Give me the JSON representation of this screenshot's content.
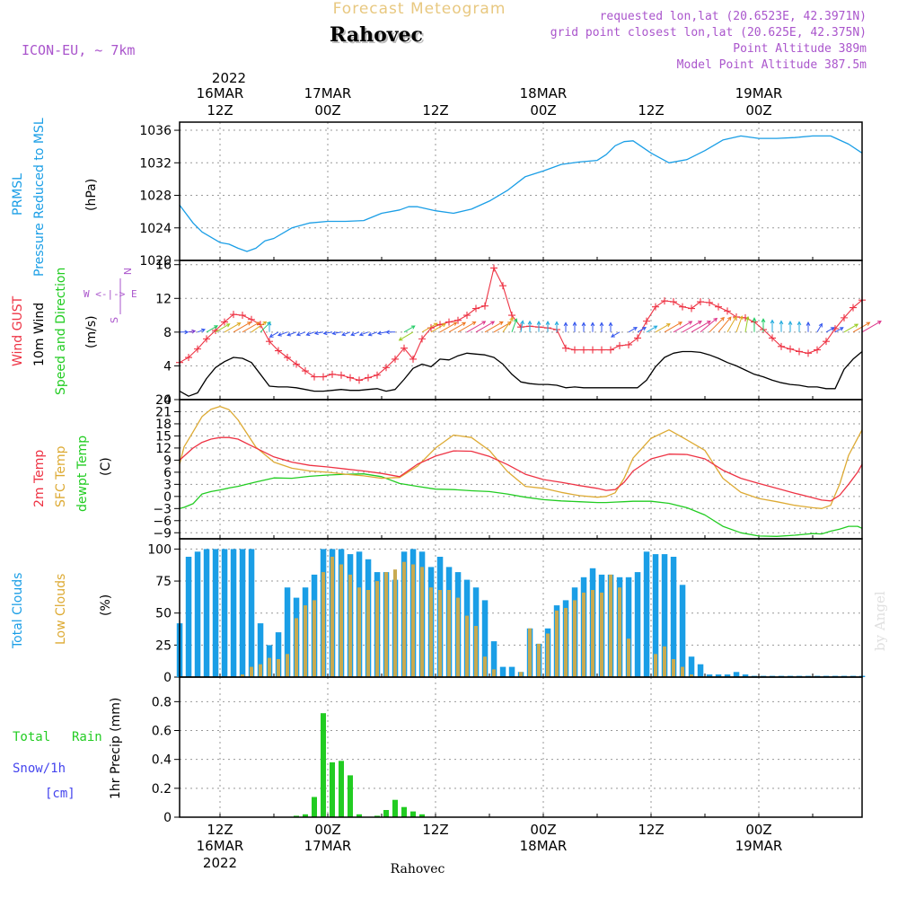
{
  "header": {
    "product_title": "Forecast Meteogram",
    "location": "Rahovec",
    "model": "ICON-EU, ~ 7km",
    "requested_coords": "requested lon,lat (20.6523E, 42.3971N)",
    "grid_coords": "grid point closest lon,lat (20.625E, 42.375N)",
    "point_altitude": "Point Altitude 389m",
    "model_altitude": "Model Point Altitude 387.5m",
    "footer_location": "Rahovec",
    "watermark": "by Angel"
  },
  "time_axis": {
    "top_year": "2022",
    "top_labels": [
      {
        "h": 12,
        "l1": "16MAR",
        "l2": "12Z"
      },
      {
        "h": 24,
        "l1": "17MAR",
        "l2": "00Z"
      },
      {
        "h": 36,
        "l1": "",
        "l2": "12Z"
      },
      {
        "h": 48,
        "l1": "18MAR",
        "l2": "00Z"
      },
      {
        "h": 60,
        "l1": "",
        "l2": "12Z"
      },
      {
        "h": 72,
        "l1": "19MAR",
        "l2": "00Z"
      }
    ],
    "bottom_labels": [
      {
        "h": 12,
        "l1": "12Z",
        "l2": "16MAR",
        "l3": "2022"
      },
      {
        "h": 24,
        "l1": "00Z",
        "l2": "17MAR",
        "l3": ""
      },
      {
        "h": 36,
        "l1": "12Z",
        "l2": "",
        "l3": ""
      },
      {
        "h": 48,
        "l1": "00Z",
        "l2": "18MAR",
        "l3": ""
      },
      {
        "h": 60,
        "l1": "12Z",
        "l2": "",
        "l3": ""
      },
      {
        "h": 72,
        "l1": "00Z",
        "l2": "19MAR",
        "l3": ""
      }
    ],
    "start_hour_offset": 7.5,
    "end_hour_offset": 83.5
  },
  "panel_labels": {
    "pressure": [
      "PRMSL",
      "Pressure Reduced to MSL",
      "(hPa)"
    ],
    "wind": [
      "Wind GUST",
      "10m Wind",
      "Speed and Direction",
      "(m/s)"
    ],
    "compass": [
      "N",
      "W <-|-> E",
      "S"
    ],
    "temp": [
      "2m Temp",
      "SFC Temp",
      "dewpt Temp",
      "(C)"
    ],
    "clouds": [
      "Total Clouds",
      "Low Clouds",
      "(%)"
    ],
    "precip": [
      "Total",
      "Rain",
      "Snow/1h",
      "[cm]",
      "1hr Precip (mm)"
    ]
  },
  "colors": {
    "pressure": "#1a9ee6",
    "gust": "#ee3344",
    "wind": "#000000",
    "sfc_temp": "#ddaa33",
    "dewpt": "#22cc22",
    "total_clouds": "#1a9ee6",
    "low_clouds": "#c8aa50",
    "rain": "#22cc22",
    "snow": "#4444ee",
    "title_gold": "#e8c880",
    "magenta": "#aa55cc"
  },
  "chart_data": [
    {
      "type": "line",
      "title": "Pressure Reduced to MSL",
      "ylabel": "(hPa)",
      "ylim": [
        1020,
        1037
      ],
      "yticks": [
        1020,
        1024,
        1028,
        1032,
        1036
      ],
      "x_hours": [
        7.5,
        9,
        10,
        12,
        13,
        14,
        15,
        16,
        17,
        18,
        20,
        22,
        24,
        26,
        28,
        30,
        32,
        33,
        34,
        36,
        38,
        40,
        41,
        42,
        44,
        46,
        48,
        50,
        52,
        54,
        55,
        56,
        57,
        58,
        60,
        62,
        64,
        66,
        68,
        70,
        72,
        74,
        76,
        78,
        80,
        82,
        83.5
      ],
      "series": [
        {
          "name": "PRMSL",
          "values": [
            1026.8,
            1024.6,
            1023.5,
            1022.2,
            1022.0,
            1021.5,
            1021.1,
            1021.5,
            1022.4,
            1022.7,
            1024.0,
            1024.6,
            1024.8,
            1024.8,
            1024.9,
            1025.8,
            1026.2,
            1026.6,
            1026.6,
            1026.1,
            1025.8,
            1026.3,
            1026.8,
            1027.3,
            1028.6,
            1030.3,
            1031.0,
            1031.8,
            1032.1,
            1032.3,
            1033.0,
            1034.1,
            1034.6,
            1034.7,
            1033.2,
            1032.0,
            1032.4,
            1033.5,
            1034.8,
            1035.3,
            1035.0,
            1035.0,
            1035.1,
            1035.3,
            1035.3,
            1034.3,
            1033.2
          ]
        }
      ]
    },
    {
      "type": "line",
      "title": "Wind GUST / 10m Wind Speed and Direction",
      "ylabel": "(m/s)",
      "ylim": [
        0,
        16.5
      ],
      "yticks": [
        0,
        4,
        8,
        12,
        16
      ],
      "x_hours": [
        7.5,
        8.5,
        9.5,
        10.5,
        11.5,
        12.5,
        13.5,
        14.5,
        15.5,
        16.5,
        17.5,
        18.5,
        19.5,
        20.5,
        21.5,
        22.5,
        23.5,
        24.5,
        25.5,
        26.5,
        27.5,
        28.5,
        29.5,
        30.5,
        31.5,
        32.5,
        33.5,
        34.5,
        35.5,
        36.5,
        37.5,
        38.5,
        39.5,
        40.5,
        41.5,
        42.5,
        43.5,
        44.5,
        45.5,
        46.5,
        47.5,
        48.5,
        49.5,
        50.5,
        51.5,
        52.5,
        53.5,
        54.5,
        55.5,
        56.5,
        57.5,
        58.5,
        59.5,
        60.5,
        61.5,
        62.5,
        63.5,
        64.5,
        65.5,
        66.5,
        67.5,
        68.5,
        69.5,
        70.5,
        71.5,
        72.5,
        73.5,
        74.5,
        75.5,
        76.5,
        77.5,
        78.5,
        79.5,
        80.5,
        81.5,
        82.5,
        83.5
      ],
      "series": [
        {
          "name": "Wind GUST",
          "values": [
            4.4,
            5.0,
            6.0,
            7.2,
            8.2,
            9.2,
            10.1,
            10.0,
            9.5,
            8.9,
            6.9,
            5.8,
            5.0,
            4.2,
            3.4,
            2.7,
            2.7,
            3.0,
            2.9,
            2.6,
            2.3,
            2.6,
            2.9,
            3.8,
            4.8,
            6.1,
            4.8,
            7.2,
            8.5,
            8.9,
            9.2,
            9.4,
            10.0,
            10.8,
            11.1,
            15.6,
            13.5,
            10.0,
            8.6,
            8.7,
            8.6,
            8.5,
            8.3,
            6.1,
            5.9,
            5.9,
            5.9,
            5.9,
            5.9,
            6.4,
            6.5,
            7.3,
            9.3,
            11.0,
            11.7,
            11.6,
            11.0,
            10.8,
            11.6,
            11.5,
            11.0,
            10.5,
            9.8,
            9.7,
            9.2,
            8.3,
            7.3,
            6.3,
            6.0,
            5.7,
            5.5,
            5.9,
            6.9,
            8.4,
            9.7,
            10.9,
            11.8
          ]
        },
        {
          "name": "10m Wind",
          "values": [
            1.0,
            0.4,
            0.8,
            2.5,
            3.8,
            4.5,
            5.0,
            4.9,
            4.4,
            3.0,
            1.6,
            1.5,
            1.5,
            1.4,
            1.2,
            1.0,
            1.0,
            1.1,
            1.2,
            1.1,
            1.1,
            1.2,
            1.3,
            1.0,
            1.2,
            2.4,
            3.7,
            4.2,
            3.9,
            4.8,
            4.7,
            5.2,
            5.5,
            5.4,
            5.3,
            5.0,
            4.2,
            3.0,
            2.1,
            1.9,
            1.8,
            1.8,
            1.7,
            1.4,
            1.5,
            1.4,
            1.4,
            1.4,
            1.4,
            1.4,
            1.4,
            1.4,
            2.3,
            3.9,
            5.0,
            5.5,
            5.7,
            5.7,
            5.6,
            5.3,
            4.9,
            4.4,
            4.0,
            3.5,
            3.0,
            2.7,
            2.3,
            2.0,
            1.8,
            1.7,
            1.5,
            1.5,
            1.3,
            1.3,
            3.6,
            4.8,
            5.7
          ]
        }
      ]
    },
    {
      "type": "line",
      "title": "2m Temp / SFC Temp / dewpt Temp",
      "ylabel": "(C)",
      "ylim": [
        -10.5,
        24
      ],
      "yticks": [
        -9,
        -6,
        -3,
        0,
        3,
        6,
        9,
        12,
        15,
        18,
        21,
        24
      ],
      "x_hours": [
        7.5,
        8,
        9,
        10,
        11,
        12,
        13,
        14,
        16,
        18,
        20,
        22,
        24,
        26,
        28,
        30,
        32,
        34,
        36,
        38,
        40,
        42,
        44,
        46,
        48,
        50,
        52,
        54,
        55,
        56,
        57,
        58,
        60,
        62,
        64,
        66,
        68,
        70,
        72,
        74,
        76,
        78,
        79,
        80,
        81,
        82,
        83,
        83.5
      ],
      "series": [
        {
          "name": "2m Temp",
          "values": [
            9.0,
            10.0,
            12.0,
            13.4,
            14.2,
            14.6,
            14.6,
            14.2,
            12.0,
            9.8,
            8.5,
            7.7,
            7.3,
            6.8,
            6.3,
            5.7,
            4.9,
            8.0,
            10.0,
            11.3,
            11.2,
            9.9,
            7.9,
            5.5,
            4.2,
            3.5,
            2.7,
            2.0,
            1.5,
            1.7,
            3.5,
            6.3,
            9.3,
            10.5,
            10.4,
            9.3,
            6.5,
            4.5,
            3.2,
            2.0,
            0.8,
            -0.3,
            -0.9,
            -1.1,
            0.3,
            3.0,
            6.0,
            8.0
          ]
        },
        {
          "name": "SFC Temp",
          "values": [
            8.0,
            12.3,
            16.0,
            19.8,
            21.6,
            22.3,
            21.5,
            19.0,
            12.2,
            8.5,
            7.0,
            6.3,
            6.0,
            5.5,
            5.1,
            4.5,
            4.7,
            7.5,
            12.0,
            15.2,
            14.6,
            11.4,
            6.2,
            2.5,
            2.0,
            1.0,
            0.2,
            -0.2,
            0.0,
            0.9,
            4.5,
            9.5,
            14.4,
            16.5,
            14.0,
            11.4,
            4.5,
            1.0,
            -0.5,
            -1.3,
            -2.2,
            -2.8,
            -3.0,
            -2.2,
            3.0,
            10.2,
            14.4,
            16.5
          ]
        },
        {
          "name": "dewpt Temp",
          "values": [
            -3.0,
            -2.7,
            -1.8,
            0.6,
            1.2,
            1.6,
            2.1,
            2.5,
            3.6,
            4.6,
            4.5,
            5.0,
            5.3,
            5.5,
            5.6,
            4.9,
            3.2,
            2.5,
            1.8,
            1.7,
            1.4,
            1.2,
            0.6,
            -0.2,
            -0.8,
            -1.1,
            -1.3,
            -1.5,
            -1.5,
            -1.4,
            -1.3,
            -1.2,
            -1.2,
            -1.7,
            -2.8,
            -4.6,
            -7.4,
            -9.0,
            -9.8,
            -9.9,
            -9.6,
            -9.2,
            -9.3,
            -8.6,
            -8.1,
            -7.4,
            -7.4,
            -7.9
          ]
        }
      ]
    },
    {
      "type": "bar",
      "title": "Total Clouds / Low Clouds",
      "ylabel": "(%)",
      "ylim": [
        0,
        108
      ],
      "yticks": [
        0,
        25,
        50,
        75,
        100
      ],
      "x_hours": [
        7.5,
        8.5,
        9.5,
        10.5,
        11.5,
        12.5,
        13.5,
        14.5,
        15.5,
        16.5,
        17.5,
        18.5,
        19.5,
        20.5,
        21.5,
        22.5,
        23.5,
        24.5,
        25.5,
        26.5,
        27.5,
        28.5,
        29.5,
        30.5,
        31.5,
        32.5,
        33.5,
        34.5,
        35.5,
        36.5,
        37.5,
        38.5,
        39.5,
        40.5,
        41.5,
        42.5,
        43.5,
        44.5,
        45.5,
        46.5,
        47.5,
        48.5,
        49.5,
        50.5,
        51.5,
        52.5,
        53.5,
        54.5,
        55.5,
        56.5,
        57.5,
        58.5,
        59.5,
        60.5,
        61.5,
        62.5,
        63.5,
        64.5,
        65.5,
        66.5,
        67.5,
        68.5,
        69.5,
        70.5,
        71.5,
        72.5,
        73.5,
        74.5,
        75.5,
        76.5,
        77.5,
        78.5,
        79.5,
        80.5,
        81.5,
        82.5,
        83.5
      ],
      "series": [
        {
          "name": "Total Clouds",
          "values": [
            42,
            94,
            98,
            100,
            100,
            100,
            100,
            100,
            100,
            42,
            25,
            35,
            70,
            62,
            70,
            80,
            100,
            100,
            100,
            96,
            98,
            92,
            82,
            82,
            76,
            98,
            100,
            98,
            86,
            94,
            86,
            82,
            76,
            70,
            60,
            28,
            8,
            8,
            4,
            38,
            26,
            38,
            56,
            60,
            70,
            78,
            85,
            80,
            80,
            78,
            78,
            82,
            98,
            96,
            96,
            94,
            72,
            16,
            10,
            2,
            2,
            2,
            4,
            2,
            1,
            1,
            1,
            1,
            1,
            1,
            1,
            1,
            1,
            1,
            1,
            1,
            1
          ]
        },
        {
          "name": "Low Clouds",
          "values": [
            0,
            0,
            0,
            0,
            0,
            0,
            0,
            2,
            8,
            10,
            15,
            14,
            18,
            46,
            56,
            60,
            82,
            94,
            88,
            80,
            70,
            68,
            75,
            82,
            84,
            90,
            88,
            86,
            70,
            68,
            68,
            62,
            48,
            40,
            16,
            6,
            0,
            0,
            4,
            38,
            26,
            34,
            52,
            54,
            60,
            66,
            68,
            66,
            80,
            70,
            30,
            0,
            0,
            18,
            24,
            14,
            8,
            2,
            0,
            0,
            0,
            0,
            0,
            0,
            0,
            0,
            0,
            0,
            0,
            0,
            0,
            0,
            0,
            0,
            0,
            0,
            0
          ]
        }
      ]
    },
    {
      "type": "bar",
      "title": "1hr Precip (mm)",
      "ylabel": "1hr Precip (mm)",
      "ylim": [
        0,
        0.97
      ],
      "yticks": [
        0,
        0.2,
        0.4,
        0.6,
        0.8
      ],
      "x_hours": [
        20.5,
        21.5,
        22.5,
        23.5,
        24.5,
        25.5,
        26.5,
        27.5,
        29.5,
        30.5,
        31.5,
        32.5,
        33.5,
        34.5
      ],
      "series": [
        {
          "name": "Total Rain",
          "values": [
            0.01,
            0.02,
            0.14,
            0.72,
            0.38,
            0.39,
            0.29,
            0.02,
            0.01,
            0.05,
            0.12,
            0.07,
            0.04,
            0.02
          ]
        },
        {
          "name": "Snow/1h",
          "values": [
            0,
            0,
            0,
            0,
            0,
            0,
            0,
            0,
            0,
            0,
            0,
            0,
            0,
            0
          ]
        }
      ]
    }
  ],
  "wind_barbs": {
    "x_hours": [
      7.5,
      8.5,
      9.5,
      10.5,
      11.5,
      12.5,
      13.5,
      14.5,
      15.5,
      16.5,
      17.5,
      18.5,
      19.5,
      20.5,
      21.5,
      22.5,
      23.5,
      24.5,
      25.5,
      26.5,
      27.5,
      28.5,
      29.5,
      30.5,
      31.5,
      32.5,
      33.5,
      34.5,
      35.5,
      36.5,
      37.5,
      38.5,
      39.5,
      40.5,
      41.5,
      42.5,
      43.5,
      44.5,
      45.5,
      46.5,
      47.5,
      48.5,
      49.5,
      50.5,
      51.5,
      52.5,
      53.5,
      54.5,
      55.5,
      56.5,
      57.5,
      58.5,
      59.5,
      60.5,
      61.5,
      62.5,
      63.5,
      64.5,
      65.5,
      66.5,
      67.5,
      68.5,
      69.5,
      70.5,
      71.5,
      72.5,
      73.5,
      74.5,
      75.5,
      76.5,
      77.5,
      78.5,
      79.5,
      80.5,
      81.5,
      82.5,
      83.5
    ],
    "direction_deg": [
      270,
      260,
      250,
      240,
      240,
      240,
      240,
      240,
      235,
      225,
      180,
      60,
      70,
      70,
      70,
      70,
      80,
      80,
      80,
      70,
      70,
      70,
      70,
      80,
      90,
      240,
      60,
      240,
      240,
      240,
      240,
      240,
      240,
      240,
      240,
      240,
      215,
      200,
      190,
      180,
      180,
      180,
      180,
      180,
      180,
      180,
      180,
      180,
      180,
      60,
      240,
      240,
      240,
      240,
      240,
      240,
      240,
      240,
      230,
      225,
      220,
      210,
      200,
      190,
      180,
      180,
      180,
      180,
      180,
      180,
      180,
      210,
      240,
      240,
      240,
      240,
      240
    ]
  }
}
